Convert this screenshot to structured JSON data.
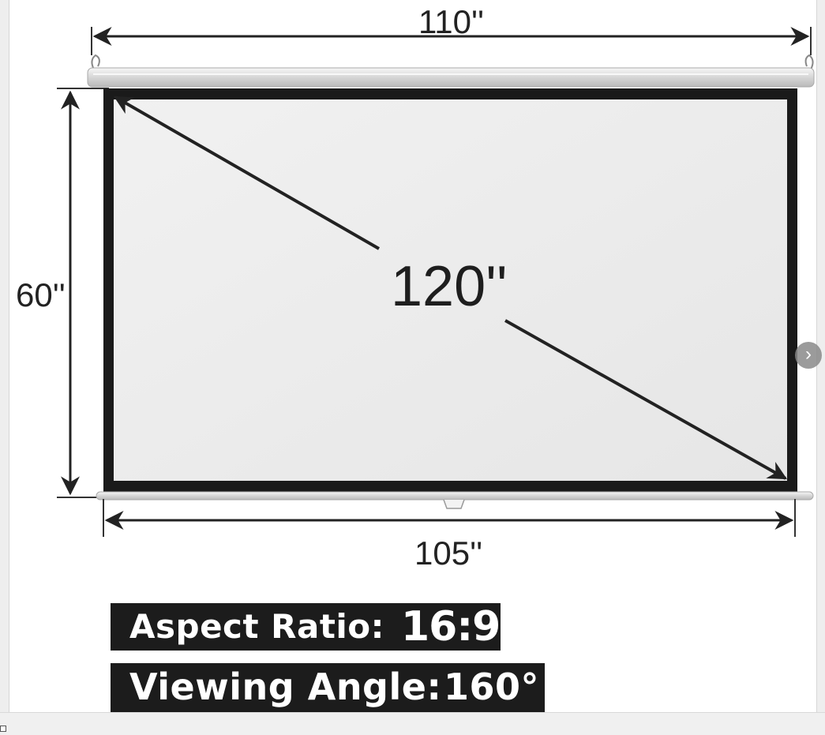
{
  "dimensions": {
    "width_label": "110''",
    "height_label": "60''",
    "viewable_width_label": "105''",
    "diagonal_label": "120''"
  },
  "specs": {
    "aspect_ratio_label": "Aspect Ratio:",
    "aspect_ratio_value": "16:9",
    "viewing_angle_label": "Viewing Angle:",
    "viewing_angle_value": "160°"
  },
  "gallery": {
    "next_icon": "chevron-right-icon",
    "next_glyph": "›"
  },
  "colors": {
    "screen_surface": "#eeeeee",
    "screen_border": "#1a1a1a",
    "badge_background": "#1c1c1c",
    "badge_text": "#ffffff",
    "arrow": "#222222"
  }
}
